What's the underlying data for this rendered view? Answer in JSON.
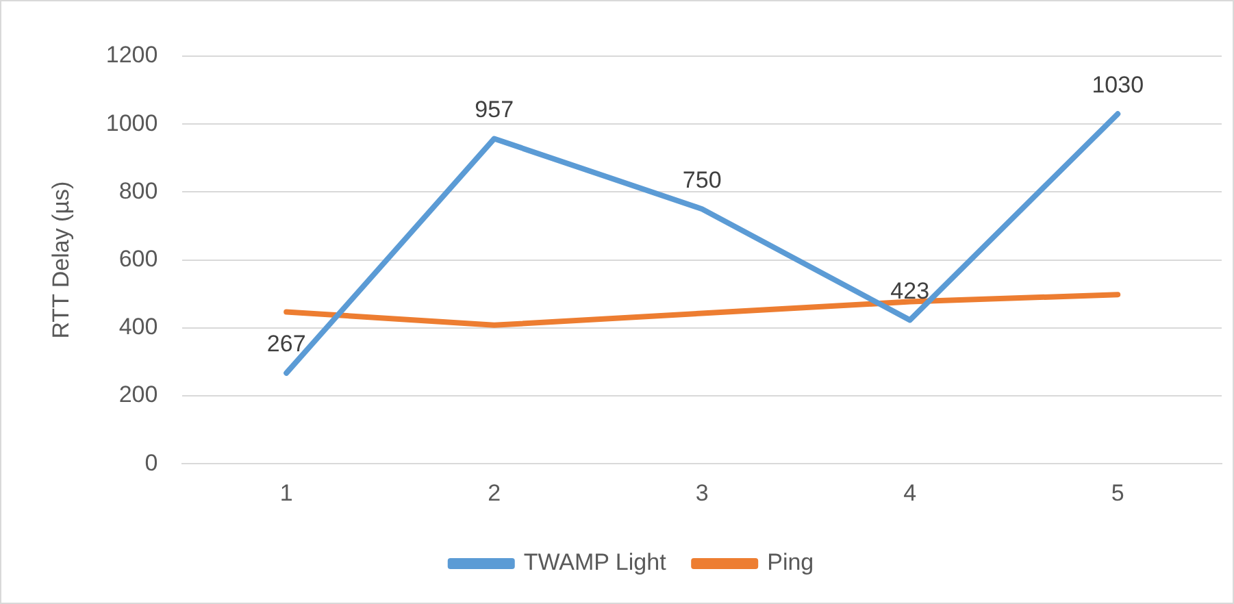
{
  "chart_data": {
    "type": "line",
    "ylabel": "RTT Delay (µs)",
    "categories": [
      "1",
      "2",
      "3",
      "4",
      "5"
    ],
    "series": [
      {
        "name": "TWAMP Light",
        "color": "#5b9bd5",
        "values": [
          267,
          957,
          750,
          423,
          1030
        ],
        "value_labels": [
          "267",
          "957",
          "750",
          "423",
          "1030"
        ]
      },
      {
        "name": "Ping",
        "color": "#ed7d31",
        "values": [
          447,
          408,
          443,
          477,
          498
        ]
      }
    ],
    "ylim": [
      0,
      1200
    ],
    "yticks": [
      0,
      200,
      400,
      600,
      800,
      1000,
      1200
    ],
    "grid": "y",
    "legend": "bottom",
    "marker": "none",
    "line_style": "solid"
  }
}
